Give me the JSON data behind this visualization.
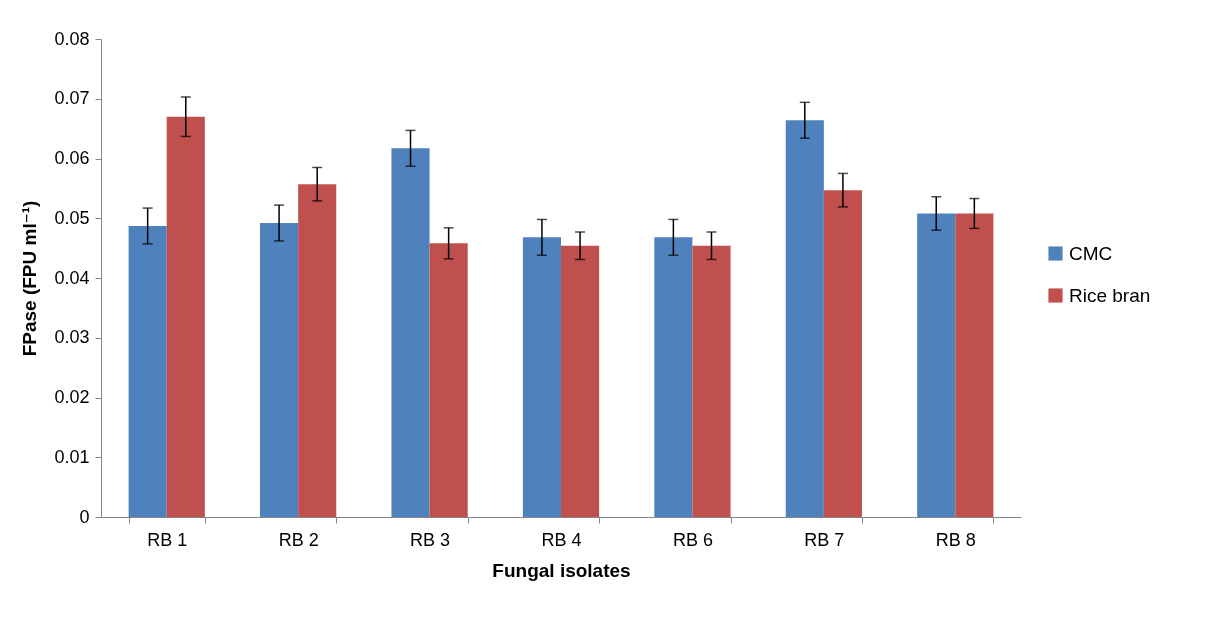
{
  "chart_data": {
    "type": "bar",
    "xlabel": "Fungal isolates",
    "ylabel": "FPase (FPU ml⁻¹)",
    "categories": [
      "RB 1",
      "RB 2",
      "RB 3",
      "RB 4",
      "RB 6",
      "RB 7",
      "RB 8"
    ],
    "series": [
      {
        "name": "CMC",
        "color": "#4f81bd",
        "values": [
          0.0487,
          0.0492,
          0.0617,
          0.0468,
          0.0468,
          0.0664,
          0.0508
        ],
        "errors": [
          0.003,
          0.003,
          0.003,
          0.003,
          0.003,
          0.003,
          0.0028
        ]
      },
      {
        "name": "Rice bran",
        "color": "#c0504d",
        "values": [
          0.067,
          0.0557,
          0.0458,
          0.0454,
          0.0454,
          0.0547,
          0.0508
        ],
        "errors": [
          0.0033,
          0.0028,
          0.0026,
          0.0023,
          0.0023,
          0.0028,
          0.0025
        ]
      }
    ],
    "ylim": [
      0,
      0.08
    ],
    "yticks": [
      0,
      0.01,
      0.02,
      0.03,
      0.04,
      0.05,
      0.06,
      0.07,
      0.08
    ],
    "grid": false,
    "legend": "right"
  }
}
